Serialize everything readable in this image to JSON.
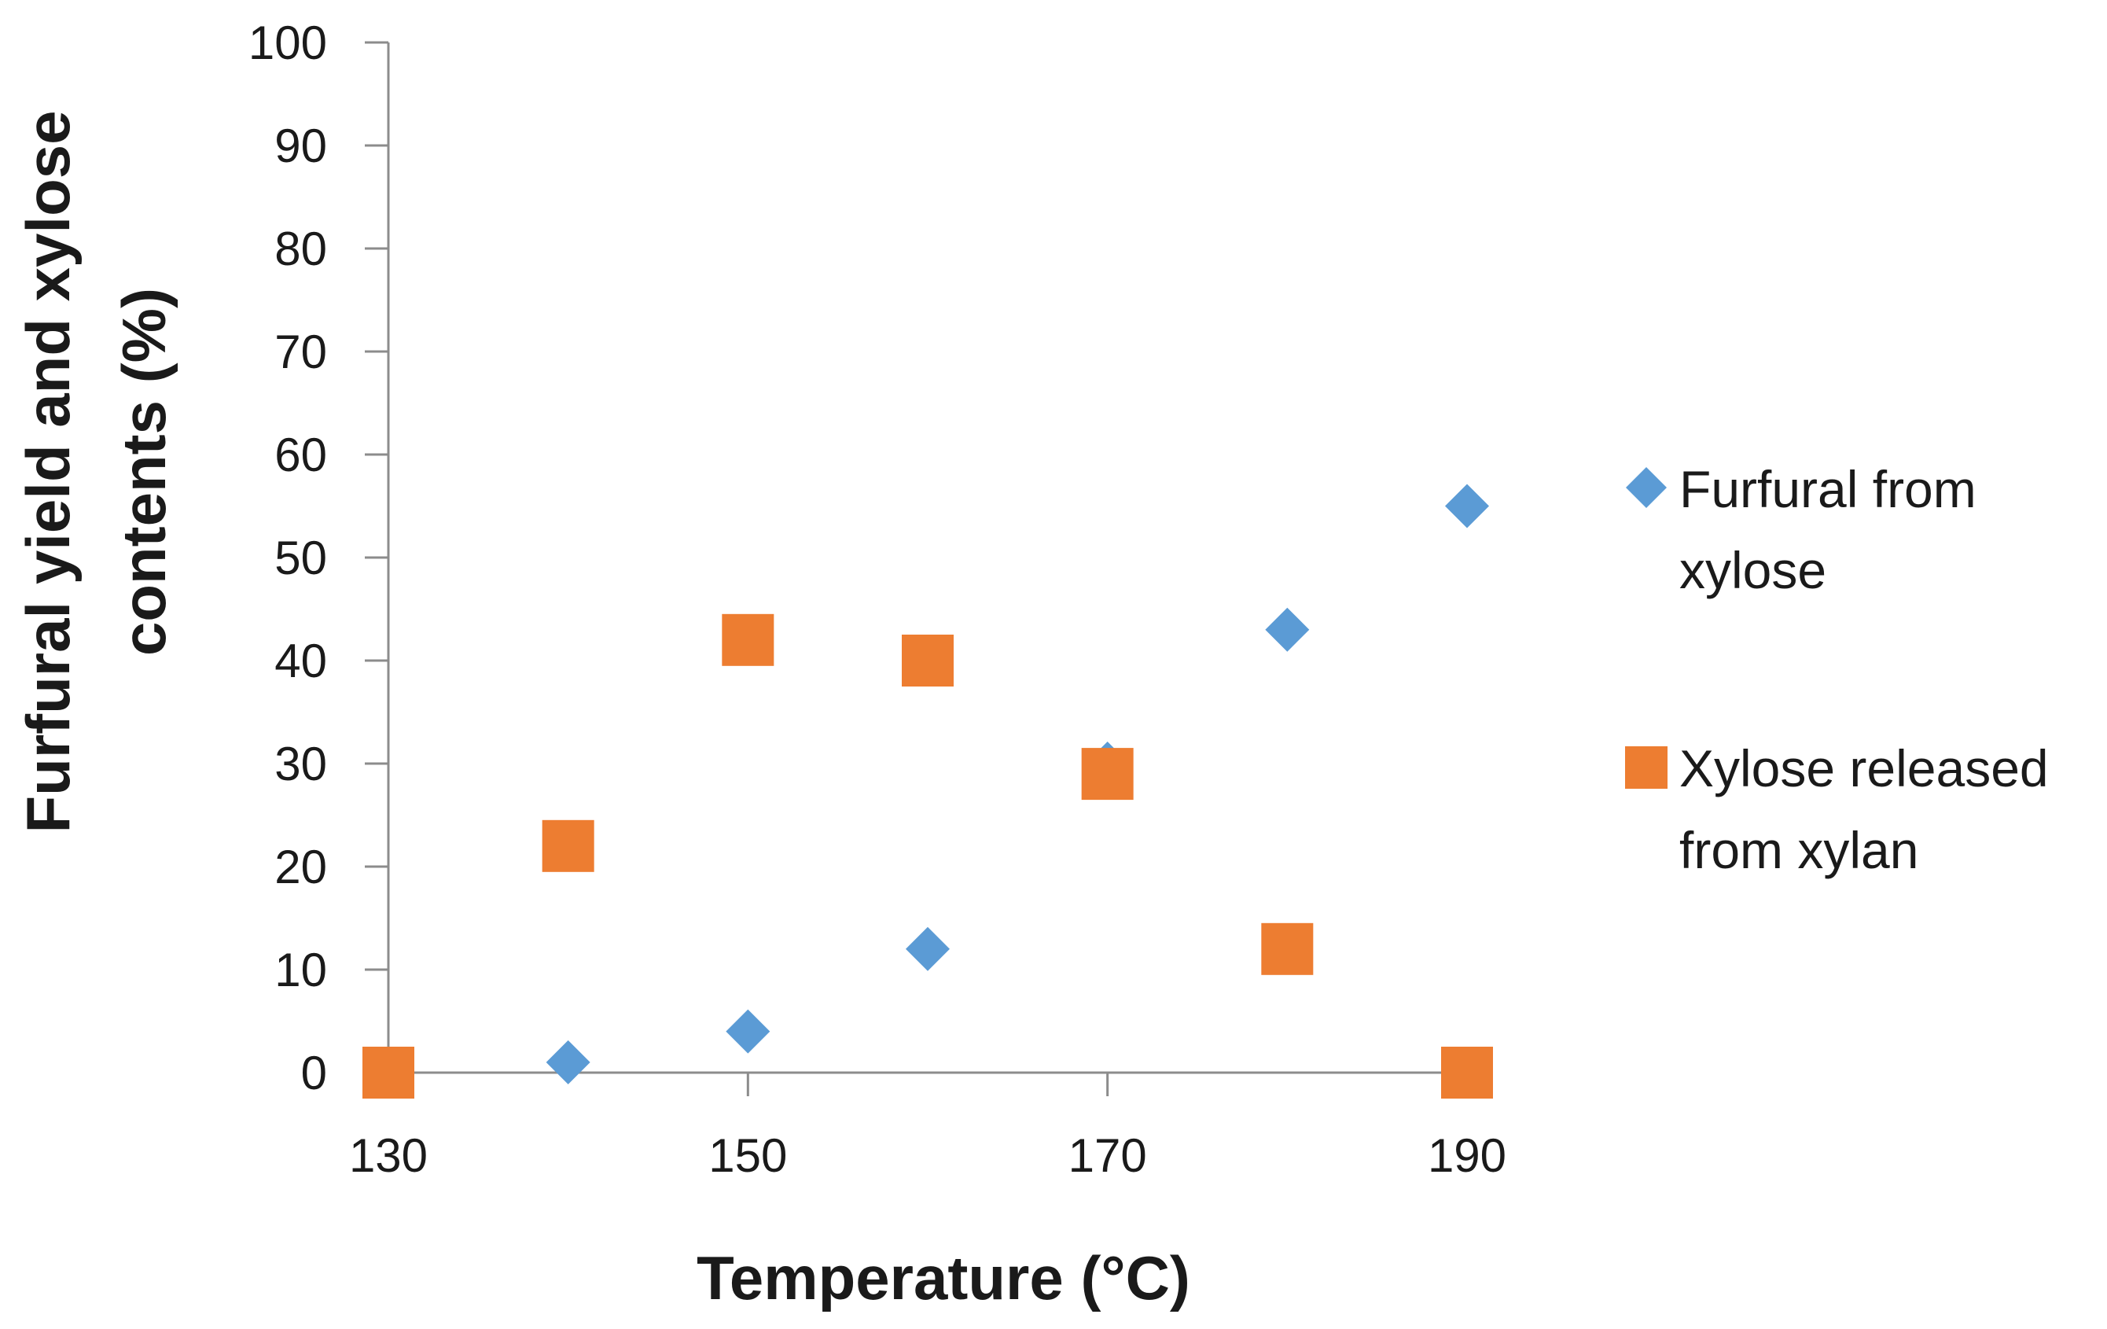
{
  "chart_data": {
    "type": "scatter",
    "title": "",
    "xlabel": "Temperature (°C)",
    "ylabel_lines": [
      "Furfural yield and xylose",
      "contents (%)"
    ],
    "xlim": [
      130,
      190
    ],
    "ylim": [
      0,
      100
    ],
    "x_ticks": [
      130,
      150,
      170,
      190
    ],
    "y_ticks": [
      0,
      10,
      20,
      30,
      40,
      50,
      60,
      70,
      80,
      90,
      100
    ],
    "grid": false,
    "legend_position": "right",
    "series": [
      {
        "name": "Furfural from xylose",
        "legend_lines": [
          "Furfural from",
          "xylose"
        ],
        "marker": "diamond",
        "color": "#5B9BD5",
        "points": [
          {
            "x": 140,
            "y": 1
          },
          {
            "x": 150,
            "y": 4
          },
          {
            "x": 160,
            "y": 12
          },
          {
            "x": 170,
            "y": 30
          },
          {
            "x": 180,
            "y": 43
          },
          {
            "x": 190,
            "y": 55
          }
        ]
      },
      {
        "name": "Xylose released from xylan",
        "legend_lines": [
          "Xylose released",
          "from xylan"
        ],
        "marker": "square",
        "color": "#ED7D31",
        "points": [
          {
            "x": 130,
            "y": 0
          },
          {
            "x": 140,
            "y": 22
          },
          {
            "x": 150,
            "y": 42
          },
          {
            "x": 160,
            "y": 40
          },
          {
            "x": 170,
            "y": 29
          },
          {
            "x": 180,
            "y": 12
          },
          {
            "x": 190,
            "y": 0
          }
        ]
      }
    ]
  }
}
